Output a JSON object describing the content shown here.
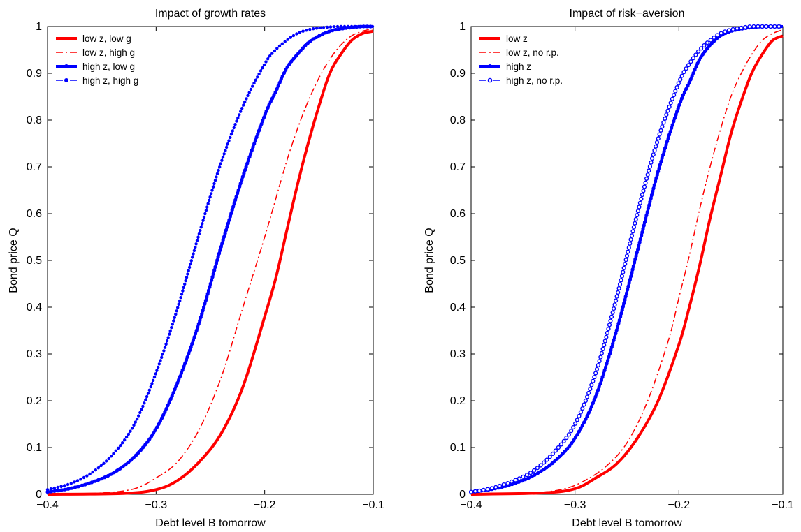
{
  "chart_data": [
    {
      "type": "line",
      "title": "Impact of growth rates",
      "xlabel": "Debt level B tomorrow",
      "ylabel": "Bond price Q",
      "xlim": [
        -0.4,
        -0.1
      ],
      "ylim": [
        0,
        1
      ],
      "xticks": [
        -0.4,
        -0.3,
        -0.2,
        -0.1
      ],
      "xtick_labels": [
        "−0.4",
        "−0.3",
        "−0.2",
        "−0.1"
      ],
      "yticks": [
        0,
        0.1,
        0.2,
        0.3,
        0.4,
        0.5,
        0.6,
        0.7,
        0.8,
        0.9,
        1
      ],
      "ytick_labels": [
        "0",
        "0.1",
        "0.2",
        "0.3",
        "0.4",
        "0.5",
        "0.6",
        "0.7",
        "0.8",
        "0.9",
        "1"
      ],
      "grid": false,
      "legend_position": "top-left",
      "series": [
        {
          "name": "low z, low g",
          "color": "#ff0000",
          "style": "solid",
          "width": 4,
          "marker": "none",
          "x": [
            -0.4,
            -0.33,
            -0.3,
            -0.28,
            -0.26,
            -0.24,
            -0.22,
            -0.2,
            -0.19,
            -0.18,
            -0.17,
            -0.16,
            -0.15,
            -0.14,
            -0.13,
            -0.12,
            -0.11,
            -0.1
          ],
          "y": [
            0,
            0.002,
            0.01,
            0.03,
            0.07,
            0.13,
            0.23,
            0.38,
            0.46,
            0.56,
            0.66,
            0.75,
            0.83,
            0.9,
            0.94,
            0.97,
            0.985,
            0.99
          ]
        },
        {
          "name": "low z, high g",
          "color": "#ff0000",
          "style": "dashdot",
          "width": 1.5,
          "marker": "none",
          "x": [
            -0.4,
            -0.35,
            -0.32,
            -0.3,
            -0.28,
            -0.26,
            -0.24,
            -0.22,
            -0.2,
            -0.19,
            -0.18,
            -0.17,
            -0.16,
            -0.15,
            -0.14,
            -0.13,
            -0.12,
            -0.11,
            -0.1
          ],
          "y": [
            0,
            0.003,
            0.012,
            0.035,
            0.07,
            0.14,
            0.25,
            0.4,
            0.55,
            0.63,
            0.71,
            0.78,
            0.84,
            0.89,
            0.93,
            0.96,
            0.98,
            0.99,
            0.995
          ]
        },
        {
          "name": "high z, low g",
          "color": "#0000ff",
          "style": "solid",
          "width": 4,
          "marker": "dot",
          "x": [
            -0.4,
            -0.38,
            -0.36,
            -0.34,
            -0.32,
            -0.3,
            -0.28,
            -0.26,
            -0.24,
            -0.22,
            -0.2,
            -0.19,
            -0.18,
            -0.17,
            -0.16,
            -0.15,
            -0.14,
            -0.13,
            -0.12,
            -0.11,
            -0.1
          ],
          "y": [
            0.005,
            0.012,
            0.025,
            0.045,
            0.08,
            0.14,
            0.24,
            0.37,
            0.53,
            0.68,
            0.81,
            0.86,
            0.91,
            0.94,
            0.965,
            0.98,
            0.99,
            0.995,
            0.998,
            1,
            1
          ]
        },
        {
          "name": "high z, high g",
          "color": "#0000ff",
          "style": "dashdot",
          "width": 1.5,
          "marker": "dot",
          "x": [
            -0.4,
            -0.38,
            -0.36,
            -0.34,
            -0.32,
            -0.3,
            -0.28,
            -0.26,
            -0.24,
            -0.22,
            -0.2,
            -0.19,
            -0.18,
            -0.17,
            -0.16,
            -0.15,
            -0.14,
            -0.13,
            -0.12,
            -0.11,
            -0.1
          ],
          "y": [
            0.01,
            0.022,
            0.045,
            0.085,
            0.15,
            0.26,
            0.4,
            0.56,
            0.71,
            0.83,
            0.92,
            0.95,
            0.97,
            0.985,
            0.993,
            0.997,
            0.999,
            1,
            1,
            1,
            1
          ]
        }
      ]
    },
    {
      "type": "line",
      "title": "Impact of risk−aversion",
      "xlabel": "Debt level B tomorrow",
      "ylabel": "Bond price Q",
      "xlim": [
        -0.4,
        -0.1
      ],
      "ylim": [
        0,
        1
      ],
      "xticks": [
        -0.4,
        -0.3,
        -0.2,
        -0.1
      ],
      "xtick_labels": [
        "−0.4",
        "−0.3",
        "−0.2",
        "−0.1"
      ],
      "yticks": [
        0,
        0.1,
        0.2,
        0.3,
        0.4,
        0.5,
        0.6,
        0.7,
        0.8,
        0.9,
        1
      ],
      "ytick_labels": [
        "0",
        "0.1",
        "0.2",
        "0.3",
        "0.4",
        "0.5",
        "0.6",
        "0.7",
        "0.8",
        "0.9",
        "1"
      ],
      "grid": false,
      "legend_position": "top-left",
      "series": [
        {
          "name": "low z",
          "color": "#ff0000",
          "style": "solid",
          "width": 4,
          "marker": "none",
          "x": [
            -0.4,
            -0.33,
            -0.3,
            -0.28,
            -0.26,
            -0.24,
            -0.22,
            -0.2,
            -0.19,
            -0.18,
            -0.17,
            -0.16,
            -0.15,
            -0.14,
            -0.13,
            -0.12,
            -0.11,
            -0.1
          ],
          "y": [
            0,
            0.003,
            0.012,
            0.035,
            0.065,
            0.12,
            0.2,
            0.32,
            0.4,
            0.49,
            0.59,
            0.68,
            0.77,
            0.84,
            0.9,
            0.94,
            0.97,
            0.98
          ]
        },
        {
          "name": "low z, no r.p.",
          "color": "#ff0000",
          "style": "dashdot",
          "width": 1.5,
          "marker": "none",
          "x": [
            -0.4,
            -0.34,
            -0.31,
            -0.29,
            -0.27,
            -0.25,
            -0.23,
            -0.21,
            -0.2,
            -0.19,
            -0.18,
            -0.17,
            -0.16,
            -0.15,
            -0.14,
            -0.13,
            -0.12,
            -0.11,
            -0.1
          ],
          "y": [
            0,
            0.003,
            0.012,
            0.03,
            0.06,
            0.11,
            0.2,
            0.33,
            0.42,
            0.51,
            0.61,
            0.7,
            0.78,
            0.85,
            0.9,
            0.94,
            0.97,
            0.985,
            0.993
          ]
        },
        {
          "name": "high z",
          "color": "#0000ff",
          "style": "solid",
          "width": 4,
          "marker": "dot",
          "x": [
            -0.4,
            -0.38,
            -0.36,
            -0.34,
            -0.32,
            -0.3,
            -0.28,
            -0.26,
            -0.24,
            -0.22,
            -0.2,
            -0.19,
            -0.18,
            -0.17,
            -0.16,
            -0.15,
            -0.14,
            -0.13,
            -0.12,
            -0.11,
            -0.1
          ],
          "y": [
            0.005,
            0.011,
            0.022,
            0.04,
            0.07,
            0.12,
            0.21,
            0.35,
            0.52,
            0.69,
            0.83,
            0.88,
            0.93,
            0.96,
            0.98,
            0.99,
            0.995,
            0.998,
            1,
            1,
            1
          ]
        },
        {
          "name": "high z, no r.p.",
          "color": "#0000ff",
          "style": "dashdot",
          "width": 1.5,
          "marker": "circle",
          "x": [
            -0.4,
            -0.38,
            -0.36,
            -0.34,
            -0.32,
            -0.3,
            -0.28,
            -0.26,
            -0.24,
            -0.22,
            -0.2,
            -0.19,
            -0.18,
            -0.17,
            -0.16,
            -0.15,
            -0.14,
            -0.13,
            -0.12,
            -0.11,
            -0.1
          ],
          "y": [
            0.005,
            0.013,
            0.028,
            0.05,
            0.09,
            0.15,
            0.26,
            0.42,
            0.6,
            0.76,
            0.88,
            0.92,
            0.95,
            0.97,
            0.985,
            0.993,
            0.997,
            1,
            1,
            1,
            1
          ]
        }
      ]
    }
  ]
}
